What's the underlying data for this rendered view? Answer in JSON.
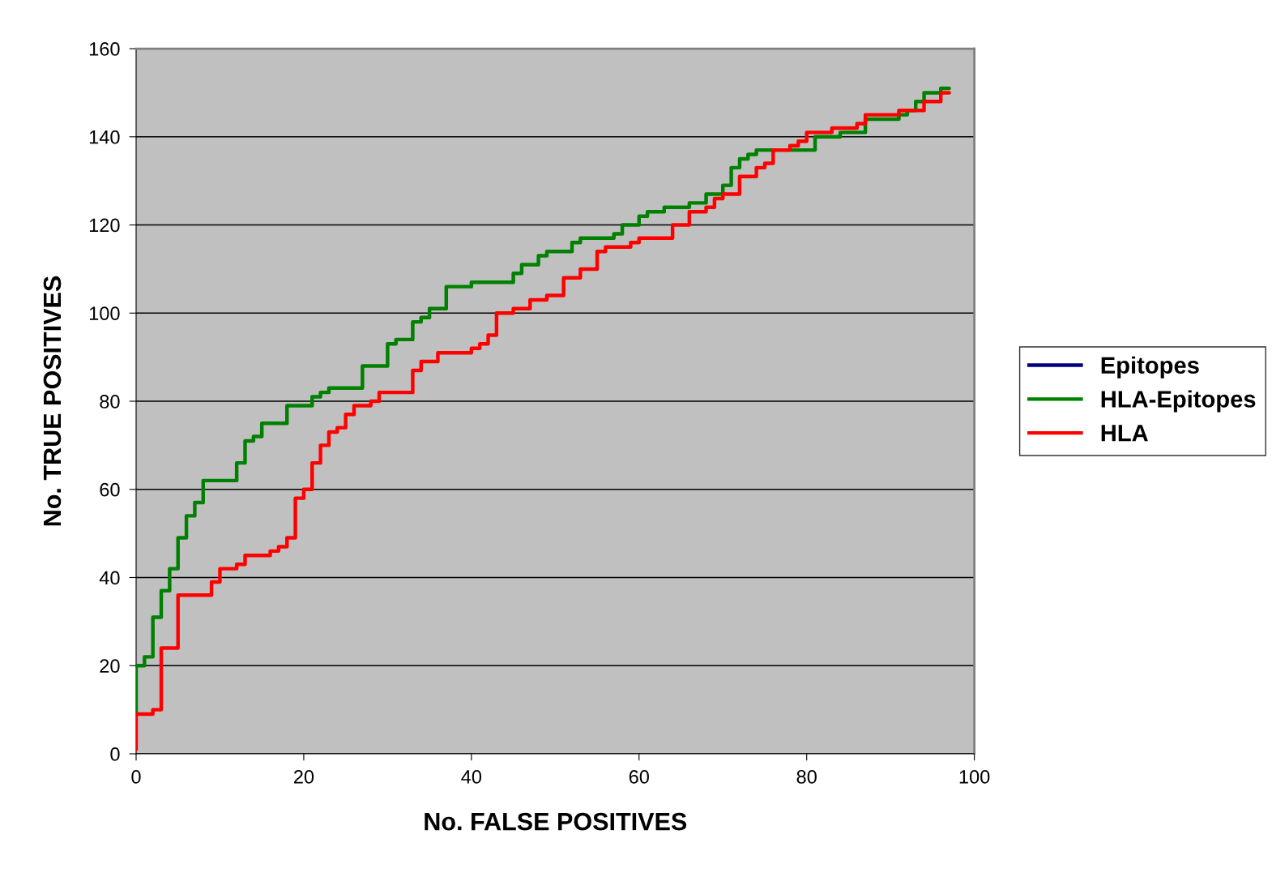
{
  "chart_data": {
    "type": "step",
    "xlabel": "No. FALSE POSITIVES",
    "ylabel": "No. TRUE POSITIVES",
    "xlim": [
      0,
      100
    ],
    "xticks": [
      0,
      20,
      40,
      60,
      80,
      100
    ],
    "ylim": [
      0,
      160
    ],
    "yticks": [
      0,
      20,
      40,
      60,
      80,
      100,
      120,
      140,
      160
    ],
    "grid": "y",
    "legend": "right",
    "line_style": "solid",
    "marker": "none",
    "series": [
      {
        "name": "Epitopes",
        "color": "#000080"
      },
      {
        "name": "HLA-Epitopes",
        "color": "#008000",
        "x": [
          0,
          0,
          1,
          2,
          3,
          4,
          5,
          6,
          7,
          8,
          12,
          13,
          14,
          15,
          18,
          21,
          22,
          23,
          27,
          30,
          31,
          33,
          34,
          35,
          37,
          40,
          45,
          46,
          48,
          49,
          52,
          53,
          57,
          58,
          60,
          61,
          63,
          66,
          68,
          70,
          71,
          72,
          73,
          74,
          81,
          84,
          87,
          91,
          92,
          93,
          94,
          96,
          97
        ],
        "values": [
          9,
          20,
          22,
          31,
          37,
          42,
          49,
          54,
          57,
          62,
          66,
          71,
          72,
          75,
          79,
          81,
          82,
          83,
          88,
          93,
          94,
          98,
          99,
          101,
          106,
          107,
          109,
          111,
          113,
          114,
          116,
          117,
          118,
          120,
          122,
          123,
          124,
          125,
          127,
          129,
          133,
          135,
          136,
          137,
          140,
          141,
          144,
          145,
          146,
          148,
          150,
          151,
          151
        ]
      },
      {
        "name": "HLA",
        "color": "#ff0000",
        "x": [
          0,
          0,
          2,
          3,
          5,
          9,
          10,
          12,
          13,
          16,
          17,
          18,
          19,
          20,
          21,
          22,
          23,
          24,
          25,
          26,
          28,
          29,
          33,
          34,
          36,
          40,
          41,
          42,
          43,
          45,
          47,
          49,
          51,
          53,
          55,
          56,
          59,
          60,
          64,
          66,
          68,
          69,
          70,
          72,
          74,
          75,
          76,
          78,
          79,
          80,
          83,
          86,
          87,
          91,
          94,
          96,
          97
        ],
        "values": [
          1,
          9,
          10,
          24,
          36,
          39,
          42,
          43,
          45,
          46,
          47,
          49,
          58,
          60,
          66,
          70,
          73,
          74,
          77,
          79,
          80,
          82,
          87,
          89,
          91,
          92,
          93,
          95,
          100,
          101,
          103,
          104,
          108,
          110,
          114,
          115,
          116,
          117,
          120,
          123,
          124,
          126,
          127,
          131,
          133,
          134,
          137,
          138,
          139,
          141,
          142,
          143,
          145,
          146,
          148,
          150,
          150
        ]
      }
    ]
  }
}
